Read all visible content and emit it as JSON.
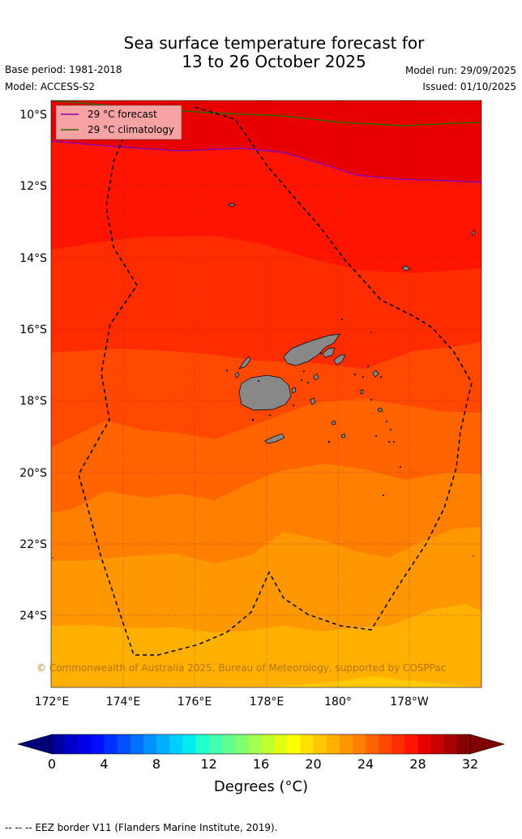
{
  "header": {
    "title_line1": "Sea surface temperature forecast for",
    "title_line2": "13 to 26 October 2025",
    "base_period": "Base period: 1981-2018",
    "model": "Model: ACCESS-S2",
    "model_run": "Model run: 29/09/2025",
    "issued": "Issued: 01/10/2025"
  },
  "map": {
    "latitude_labels": [
      "10°S",
      "12°S",
      "14°S",
      "16°S",
      "18°S",
      "20°S",
      "22°S",
      "24°S"
    ],
    "longitude_labels": [
      "172°E",
      "174°E",
      "176°E",
      "178°E",
      "180°",
      "178°W"
    ],
    "legend": {
      "forecast_label": "29 °C  forecast",
      "forecast_color": "#8b00b0",
      "climatology_label": "29 °C  climatology",
      "climatology_color": "#2e6b00"
    },
    "copyright": "© Commonwealth of Australia 2025, Bureau of Meteorology, supported by COSPPac",
    "land_color": "#888888",
    "eez_line_style": "dashed black"
  },
  "colorbar": {
    "tick_labels": [
      "0",
      "4",
      "8",
      "12",
      "16",
      "20",
      "24",
      "28",
      "32"
    ],
    "title": "Degrees (°C)",
    "colors": [
      "#0000a0",
      "#0000c8",
      "#0000e6",
      "#0010ff",
      "#0030ff",
      "#0050ff",
      "#0070ff",
      "#0090ff",
      "#00b0ff",
      "#00d0ff",
      "#00eeee",
      "#20ffd0",
      "#40ffb0",
      "#60ff90",
      "#80ff70",
      "#a0ff50",
      "#c0ff30",
      "#e0ff10",
      "#ffff00",
      "#ffe000",
      "#ffc800",
      "#ffb000",
      "#ff9800",
      "#ff8000",
      "#ff6400",
      "#ff4800",
      "#ff2c00",
      "#ff1400",
      "#e80000",
      "#cc0000",
      "#a80000",
      "#880000"
    ],
    "under_color": "#000078",
    "over_color": "#800000"
  },
  "footer": {
    "eez_note": "--  --  -- EEZ border V11 (Flanders Marine Institute, 2019)."
  }
}
